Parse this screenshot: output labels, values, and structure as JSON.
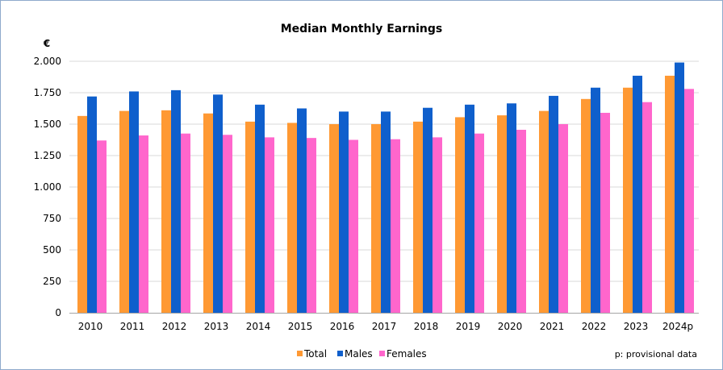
{
  "chart_data": {
    "type": "bar",
    "title": "Median Monthly Earnings",
    "ylabel": "€",
    "xlabel": "",
    "categories": [
      "2010",
      "2011",
      "2012",
      "2013",
      "2014",
      "2015",
      "2016",
      "2017",
      "2018",
      "2019",
      "2020",
      "2021",
      "2022",
      "2023",
      "2024p"
    ],
    "ylim": [
      0,
      2000
    ],
    "yticks": [
      0,
      250,
      500,
      750,
      1000,
      1250,
      1500,
      1750,
      2000
    ],
    "ytick_labels": [
      "0",
      "250",
      "500",
      "750",
      "1.000",
      "1.250",
      "1.500",
      "1.750",
      "2.000"
    ],
    "grid": true,
    "legend_position": "bottom",
    "series": [
      {
        "name": "Total",
        "color": "#ff9933",
        "values": [
          1565,
          1605,
          1610,
          1585,
          1520,
          1510,
          1500,
          1500,
          1520,
          1555,
          1570,
          1605,
          1700,
          1790,
          1885
        ]
      },
      {
        "name": "Males",
        "color": "#0f5fcc",
        "values": [
          1720,
          1760,
          1770,
          1735,
          1655,
          1625,
          1600,
          1600,
          1630,
          1655,
          1665,
          1725,
          1790,
          1885,
          1990
        ]
      },
      {
        "name": "Females",
        "color": "#ff66cc",
        "values": [
          1370,
          1410,
          1425,
          1415,
          1395,
          1390,
          1375,
          1380,
          1395,
          1425,
          1455,
          1500,
          1590,
          1675,
          1780
        ]
      }
    ],
    "note": "p: provisional data"
  }
}
